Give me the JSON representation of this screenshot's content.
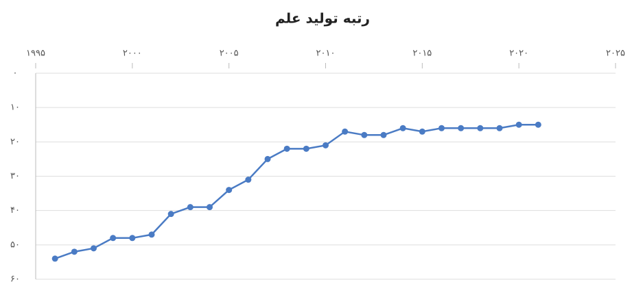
{
  "chart_data": {
    "type": "line",
    "title": "رتبه تولید علم",
    "x": [
      1996,
      1997,
      1998,
      1999,
      2000,
      2001,
      2002,
      2003,
      2004,
      2005,
      2006,
      2007,
      2008,
      2009,
      2010,
      2011,
      2012,
      2013,
      2014,
      2015,
      2016,
      2017,
      2018,
      2019,
      2020,
      2021
    ],
    "series": [
      {
        "color": "#4a7bc4",
        "values": [
          54,
          52,
          51,
          48,
          48,
          47,
          41,
          39,
          39,
          34,
          31,
          25,
          22,
          22,
          21,
          17,
          18,
          18,
          16,
          17,
          16,
          16,
          16,
          16,
          15,
          15
        ]
      }
    ],
    "xlim": [
      1995,
      2025
    ],
    "xticks": [
      {
        "value": 1995,
        "label": "۱۹۹۵"
      },
      {
        "value": 2000,
        "label": "۲۰۰۰"
      },
      {
        "value": 2005,
        "label": "۲۰۰۵"
      },
      {
        "value": 2010,
        "label": "۲۰۱۰"
      },
      {
        "value": 2015,
        "label": "۲۰۱۵"
      },
      {
        "value": 2020,
        "label": "۲۰۲۰"
      },
      {
        "value": 2025,
        "label": "۲۰۲۵"
      }
    ],
    "ylim": [
      0,
      60
    ],
    "y_inverted": true,
    "yticks": [
      {
        "value": 0,
        "label": "۰"
      },
      {
        "value": 10,
        "label": "۱۰"
      },
      {
        "value": 20,
        "label": "۲۰"
      },
      {
        "value": 30,
        "label": "۳۰"
      },
      {
        "value": 40,
        "label": "۴۰"
      },
      {
        "value": 50,
        "label": "۵۰"
      },
      {
        "value": 60,
        "label": "۶۰"
      }
    ],
    "grid": true
  }
}
